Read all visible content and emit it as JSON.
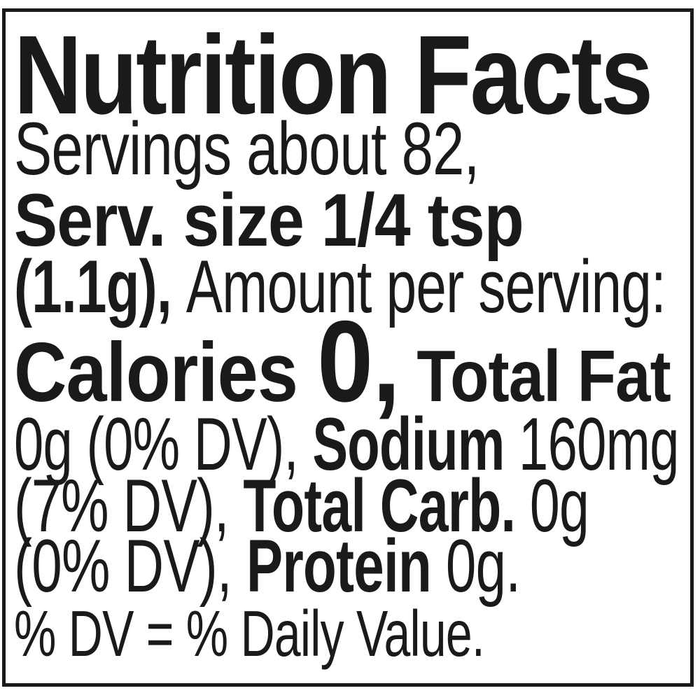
{
  "label": {
    "title": "Nutrition Facts",
    "footnote": "% DV = % Daily Value.",
    "lines": [
      {
        "segments": [
          {
            "text": "Servings about 82,",
            "style": "body"
          }
        ]
      },
      {
        "segments": [
          {
            "text": "Serv. size 1/4 tsp",
            "style": "body-bold"
          }
        ]
      },
      {
        "segments": [
          {
            "text": "(1.1g), ",
            "style": "body-bold"
          },
          {
            "text": "Amount per serving:",
            "style": "body"
          }
        ]
      },
      {
        "segments": [
          {
            "text": "Calories ",
            "style": "calories"
          },
          {
            "text": "0,",
            "style": "calories-value"
          },
          {
            "text": " Total Fat",
            "style": "fat"
          }
        ]
      },
      {
        "segments": [
          {
            "text": "0g (0% DV), ",
            "style": "body"
          },
          {
            "text": "Sodium",
            "style": "body-bold"
          },
          {
            "text": " 160mg",
            "style": "body"
          }
        ]
      },
      {
        "segments": [
          {
            "text": "(7% DV), ",
            "style": "body"
          },
          {
            "text": "Total Carb.",
            "style": "body-bold"
          },
          {
            "text": " 0g",
            "style": "body"
          }
        ]
      },
      {
        "segments": [
          {
            "text": "(0% DV), ",
            "style": "body"
          },
          {
            "text": "Protein",
            "style": "body-bold"
          },
          {
            "text": " 0g.",
            "style": "body"
          }
        ]
      }
    ],
    "nutrition": {
      "servings": "about 82",
      "serving_size": "1/4 tsp (1.1g)",
      "calories": "0",
      "total_fat": "0g (0% DV)",
      "sodium": "160mg (7% DV)",
      "total_carb": "0g (0% DV)",
      "protein": "0g"
    },
    "colors": {
      "text": "#1a1a1a",
      "border": "#1a1a1a",
      "background": "#ffffff"
    }
  }
}
